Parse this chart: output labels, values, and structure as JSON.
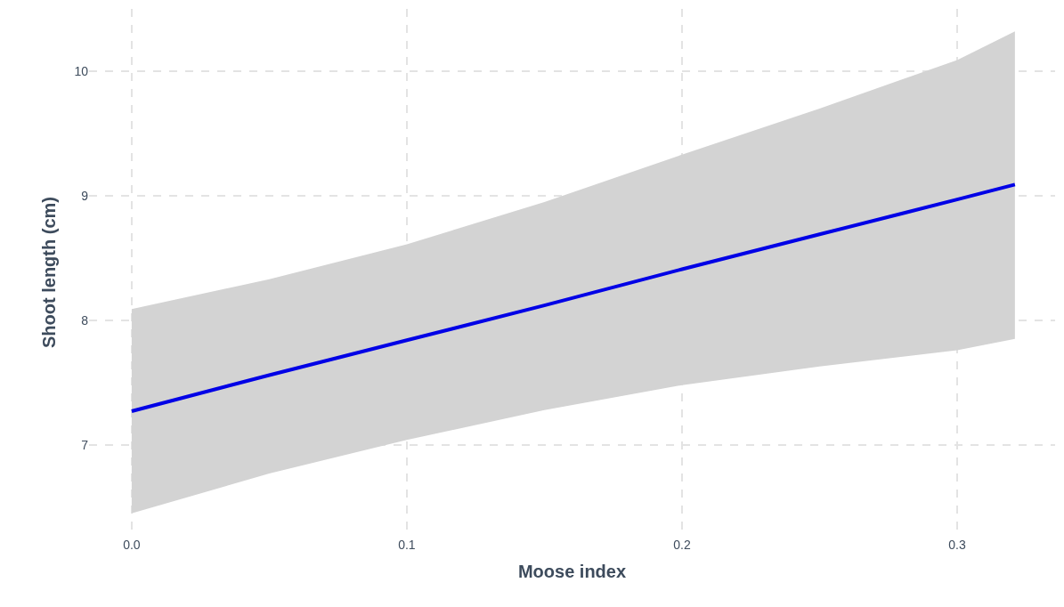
{
  "chart_data": {
    "type": "line",
    "xlabel": "Moose index",
    "ylabel": "Shoot length (cm)",
    "x": [
      0,
      0.05,
      0.1,
      0.15,
      0.2,
      0.25,
      0.3,
      0.321
    ],
    "series": [
      {
        "color": "#0000e6",
        "values": [
          7.27,
          7.56,
          7.84,
          8.12,
          8.41,
          8.69,
          8.97,
          9.09
        ],
        "lower": [
          6.45,
          6.77,
          7.04,
          7.28,
          7.48,
          7.63,
          7.76,
          7.85
        ],
        "upper": [
          8.09,
          8.33,
          8.61,
          8.95,
          9.33,
          9.7,
          10.09,
          10.32
        ]
      }
    ],
    "xlim": [
      -0.0155,
      0.3356
    ],
    "ylim": [
      6.27,
      10.5
    ],
    "xticks": [
      {
        "value": 0,
        "label": "0.0"
      },
      0.1,
      0.2,
      0.3
    ],
    "yticks": [
      7,
      8,
      9,
      10
    ],
    "grid": true,
    "line_style": "solid",
    "marker": "none"
  }
}
